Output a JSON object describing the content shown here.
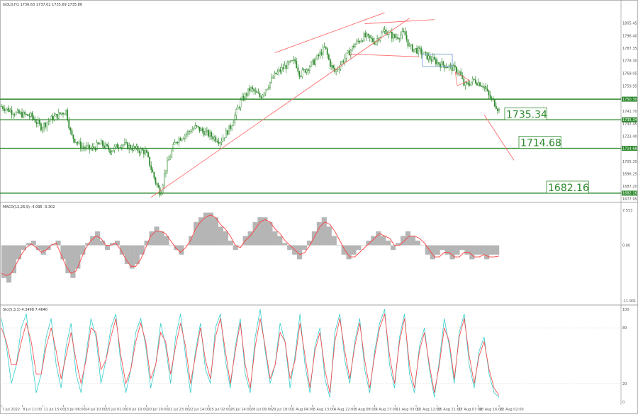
{
  "chart_data": [
    {
      "type": "candlestick",
      "title": "GOLD,H1  1736.63 1737.02 1735.69 1735.86",
      "ylim": [
        1677,
        1815
      ],
      "y_ticks": [
        "1805.45",
        "1796.40",
        "1787.35",
        "1778.30",
        "1769.05",
        "1759.95",
        "1750.90",
        "1741.70",
        "1732.45",
        "1723.40",
        "1714.35",
        "1705.30",
        "1696.25",
        "1687.20",
        "1677.95"
      ],
      "price_tags": [
        "1750.30",
        "1735.34",
        "1714.68",
        "1682.16"
      ],
      "levels": [
        {
          "value": 1750.3,
          "label": "",
          "color": "#2f8a2f"
        },
        {
          "value": 1735.34,
          "label": "1735.34",
          "color": "#2f8a2f"
        },
        {
          "value": 1714.68,
          "label": "1714.68",
          "color": "#2f8a2f"
        },
        {
          "value": 1682.16,
          "label": "1682.16",
          "color": "#2f8a2f"
        }
      ],
      "price_path": [
        [
          0,
          1745
        ],
        [
          3,
          1740
        ],
        [
          6,
          1738
        ],
        [
          8,
          1730
        ],
        [
          10,
          1736
        ],
        [
          13,
          1742
        ],
        [
          14,
          1724
        ],
        [
          16,
          1716
        ],
        [
          18,
          1714
        ],
        [
          20,
          1718
        ],
        [
          22,
          1713
        ],
        [
          24,
          1718
        ],
        [
          27,
          1714
        ],
        [
          29,
          1712
        ],
        [
          31,
          1690
        ],
        [
          32,
          1682
        ],
        [
          33,
          1700
        ],
        [
          35,
          1720
        ],
        [
          37,
          1725
        ],
        [
          39,
          1730
        ],
        [
          41,
          1726
        ],
        [
          44,
          1720
        ],
        [
          46,
          1730
        ],
        [
          48,
          1748
        ],
        [
          50,
          1758
        ],
        [
          52,
          1752
        ],
        [
          55,
          1768
        ],
        [
          57,
          1774
        ],
        [
          59,
          1778
        ],
        [
          60,
          1768
        ],
        [
          63,
          1778
        ],
        [
          65,
          1788
        ],
        [
          66,
          1776
        ],
        [
          67,
          1770
        ],
        [
          69,
          1780
        ],
        [
          71,
          1790
        ],
        [
          73,
          1796
        ],
        [
          75,
          1792
        ],
        [
          77,
          1800
        ],
        [
          79,
          1795
        ],
        [
          81,
          1798
        ],
        [
          82,
          1788
        ],
        [
          84,
          1785
        ],
        [
          86,
          1780
        ],
        [
          88,
          1776
        ],
        [
          90,
          1774
        ],
        [
          92,
          1770
        ],
        [
          93,
          1760
        ],
        [
          95,
          1764
        ],
        [
          97,
          1760
        ],
        [
          98,
          1752
        ],
        [
          99,
          1748
        ],
        [
          100,
          1742
        ]
      ],
      "trendlines": [
        {
          "from": [
            30,
            1679
          ],
          "to": [
            82,
            1809
          ],
          "color": "#ff6b6b"
        },
        {
          "from": [
            55,
            1784
          ],
          "to": [
            77,
            1813
          ],
          "color": "#ff6b6b"
        },
        {
          "from": [
            73,
            1805
          ],
          "to": [
            87,
            1808
          ],
          "color": "#ff6b6b"
        },
        {
          "from": [
            70,
            1783
          ],
          "to": [
            84,
            1781
          ],
          "color": "#ff6b6b"
        },
        {
          "from": [
            97,
            1739
          ],
          "to": [
            103,
            1706
          ],
          "color": "#ff6b6b"
        }
      ],
      "colors": {
        "candles": "#2f8a2f",
        "levels": "#2f8a2f",
        "trend": "#ff6b6b",
        "box": "#7aa2d6"
      }
    },
    {
      "type": "macd",
      "title": "MACD(12,26,9) -4.095 -3.302",
      "ylim": [
        -11.9,
        7.53
      ],
      "y_ticks": [
        "7.553",
        "0.00",
        "-11.901"
      ],
      "histogram": [
        -7,
        -8,
        -6,
        -3,
        -1,
        0.5,
        1,
        -1,
        -2,
        -1,
        0.3,
        1,
        -3,
        -6,
        -7,
        -5,
        -2,
        0.5,
        2,
        3,
        1,
        -1,
        0.5,
        1,
        -2,
        -4,
        -5,
        -4,
        -2,
        1,
        3,
        4,
        3,
        2,
        0,
        -1,
        -2,
        0,
        2,
        5,
        6,
        7,
        7,
        6,
        4,
        3,
        1,
        -1,
        0,
        2,
        3,
        5,
        6,
        6,
        5,
        3,
        2,
        0.5,
        -1,
        -2,
        -3,
        -1,
        1,
        3,
        5,
        6,
        4,
        2,
        0,
        -2,
        -3,
        -2,
        -1,
        0,
        1,
        2,
        3,
        2,
        1,
        -1,
        0.5,
        2,
        3,
        2,
        1,
        0,
        -2,
        -3,
        -2,
        -1,
        -2,
        -3,
        -2,
        -1,
        -2,
        -3,
        -2,
        -2,
        -3,
        -2,
        -2
      ],
      "signal": [
        -6,
        -6.5,
        -6,
        -4,
        -2,
        -0.5,
        0.3,
        -0.5,
        -1.5,
        -1,
        0,
        0.5,
        -2,
        -4.5,
        -6,
        -5.5,
        -3,
        -0.5,
        1,
        2,
        1.5,
        0,
        0,
        0.5,
        -1,
        -3,
        -4.5,
        -4.5,
        -3,
        -0.5,
        2,
        3,
        3,
        2.5,
        1,
        -0.5,
        -1.5,
        -0.5,
        1,
        3.5,
        5,
        6,
        6.5,
        6,
        4.5,
        3.5,
        2,
        0,
        -0.5,
        1,
        2,
        3.5,
        5,
        5.5,
        5,
        3.5,
        2.5,
        1,
        0,
        -1,
        -2,
        -1.5,
        0,
        2,
        4,
        5,
        4.5,
        3,
        1,
        -1,
        -2.5,
        -2.5,
        -1.5,
        -0.5,
        0.5,
        1.5,
        2.5,
        2,
        1.5,
        0,
        0,
        1,
        2,
        2,
        1.5,
        0.5,
        -1,
        -2.5,
        -2.5,
        -1.5,
        -1.5,
        -2.5,
        -2.5,
        -1.5,
        -1.5,
        -2.5,
        -2.5,
        -2,
        -2.5,
        -2.5,
        -2.3
      ],
      "colors": {
        "histogram": "#b5b5b5",
        "signal": "#ff4040"
      }
    },
    {
      "type": "stochastic",
      "title": "Sto(5,3,3) 4.3498 7.4640",
      "ylim": [
        0,
        100
      ],
      "y_ticks": [
        "100",
        "80",
        "20",
        "0"
      ],
      "levels": [
        80,
        20
      ],
      "k": [
        90,
        60,
        20,
        40,
        80,
        95,
        50,
        10,
        30,
        70,
        90,
        40,
        15,
        60,
        85,
        30,
        10,
        50,
        90,
        70,
        20,
        45,
        80,
        95,
        40,
        10,
        35,
        75,
        90,
        60,
        15,
        40,
        85,
        60,
        20,
        70,
        95,
        50,
        10,
        55,
        85,
        35,
        20,
        80,
        95,
        45,
        15,
        60,
        90,
        30,
        10,
        70,
        100,
        55,
        20,
        40,
        85,
        65,
        15,
        50,
        95,
        40,
        10,
        60,
        80,
        25,
        5,
        75,
        95,
        45,
        20,
        65,
        90,
        35,
        10,
        55,
        85,
        100,
        40,
        15,
        70,
        95,
        30,
        10,
        60,
        80,
        35,
        5,
        45,
        90,
        60,
        20,
        75,
        95,
        40,
        15,
        55,
        70,
        30,
        10,
        5
      ],
      "d": [
        80,
        65,
        40,
        40,
        65,
        85,
        65,
        30,
        30,
        60,
        80,
        55,
        25,
        50,
        75,
        45,
        20,
        45,
        80,
        75,
        35,
        45,
        70,
        90,
        50,
        20,
        35,
        65,
        85,
        65,
        25,
        40,
        75,
        65,
        30,
        60,
        85,
        60,
        20,
        50,
        80,
        45,
        25,
        70,
        90,
        55,
        20,
        55,
        85,
        40,
        15,
        60,
        90,
        60,
        25,
        40,
        75,
        65,
        25,
        45,
        85,
        50,
        15,
        55,
        75,
        35,
        10,
        65,
        90,
        55,
        25,
        60,
        85,
        45,
        15,
        50,
        80,
        95,
        50,
        20,
        65,
        90,
        40,
        15,
        55,
        75,
        40,
        10,
        40,
        80,
        65,
        25,
        70,
        90,
        50,
        20,
        50,
        65,
        35,
        15,
        7
      ],
      "colors": {
        "k": "#33cccc",
        "d": "#ff4040"
      }
    }
  ],
  "x_axis": {
    "labels": [
      "7 Jul 2022",
      "8 Jul 11:00",
      "11 Jul 15:00",
      "13 Jul 06:00",
      "14 Jul 10:00",
      "15 Jul 01:00",
      "19 Jul 10:00",
      "20 Jul 19:00",
      "21 Jul 23:00",
      "22 Jul 14:00",
      "25 Jul 02:00",
      "26 Jul 14:00",
      "28 Jul 09:00",
      "29 Jul 18:00",
      "2 Aug 04:00",
      "3 Aug 13:00",
      "4 Aug 22:00",
      "8 Aug 08:00",
      "9 Aug 17:00",
      "11 Aug 03:00",
      "12 Aug 12:00",
      "15 Aug 21:00",
      "17 Aug 07:00",
      "18 Aug 16:00",
      "22 Aug 02:00"
    ]
  }
}
